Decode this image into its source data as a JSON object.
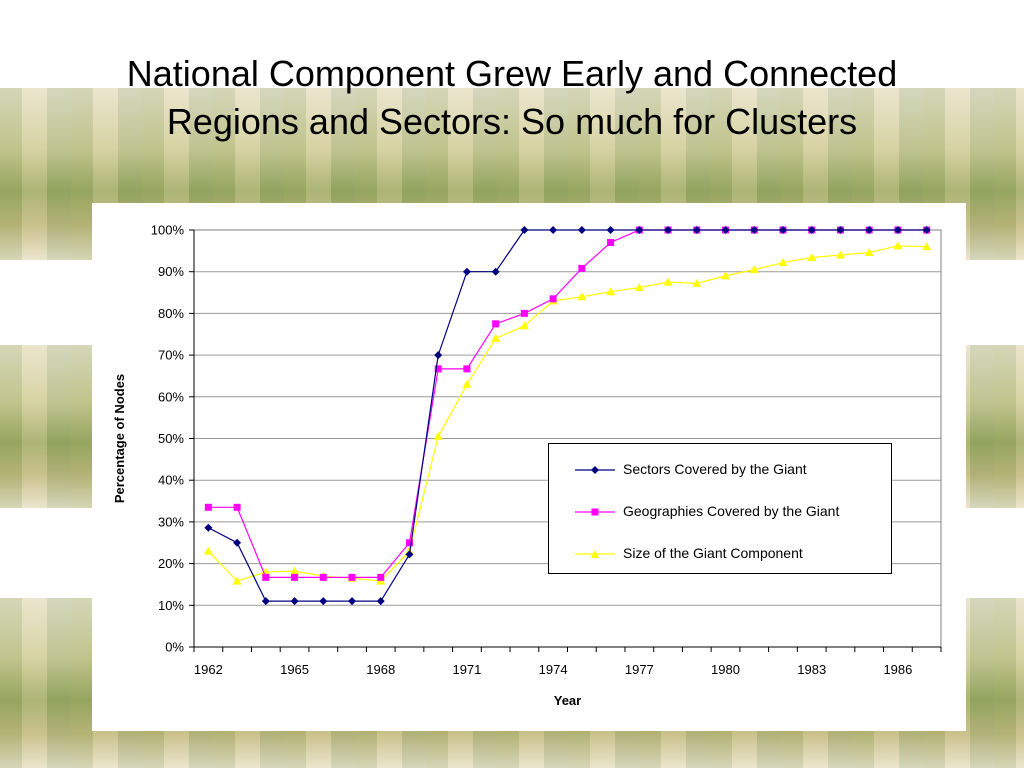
{
  "slide": {
    "title_lines": [
      "National Component Grew Early and Connected",
      "Regions and Sectors: So much for Clusters"
    ]
  },
  "chart_data": {
    "type": "line",
    "xlabel": "Year",
    "ylabel": "Percentage of Nodes",
    "x": [
      1962,
      1963,
      1964,
      1965,
      1966,
      1967,
      1968,
      1969,
      1970,
      1971,
      1972,
      1973,
      1974,
      1975,
      1976,
      1977,
      1978,
      1979,
      1980,
      1981,
      1982,
      1983,
      1984,
      1985,
      1986,
      1987
    ],
    "x_tick_labels": [
      "1962",
      "1965",
      "1968",
      "1971",
      "1974",
      "1977",
      "1980",
      "1983",
      "1986"
    ],
    "xlim": [
      1961.5,
      1987.5
    ],
    "ylim": [
      0,
      100
    ],
    "y_tick_labels": [
      "0%",
      "10%",
      "20%",
      "30%",
      "40%",
      "50%",
      "60%",
      "70%",
      "80%",
      "90%",
      "100%"
    ],
    "y_ticks": [
      0,
      10,
      20,
      30,
      40,
      50,
      60,
      70,
      80,
      90,
      100
    ],
    "grid": "horizontal",
    "legend_position": "center-right",
    "series": [
      {
        "name": "Sectors Covered by the Giant",
        "color": "#000080",
        "marker": "diamond",
        "values": [
          28.6,
          25,
          11,
          11,
          11,
          11,
          11,
          22.2,
          70,
          90,
          90,
          100,
          100,
          100,
          100,
          100,
          100,
          100,
          100,
          100,
          100,
          100,
          100,
          100,
          100,
          100
        ]
      },
      {
        "name": "Geographies Covered by the Giant",
        "color": "#ff00ff",
        "marker": "square",
        "values": [
          33.5,
          33.5,
          16.7,
          16.7,
          16.7,
          16.7,
          16.7,
          25,
          66.7,
          66.7,
          77.5,
          80,
          83.5,
          90.8,
          97,
          100,
          100,
          100,
          100,
          100,
          100,
          100,
          100,
          100,
          100,
          100
        ]
      },
      {
        "name": "Size of the Giant Component",
        "color": "#ffff00",
        "marker": "triangle",
        "values": [
          23,
          15.8,
          18,
          18.2,
          17,
          16.5,
          15.8,
          23,
          50.5,
          63,
          74,
          77,
          83,
          84,
          85.2,
          86.2,
          87.5,
          87.2,
          89,
          90.5,
          92.2,
          93.4,
          94,
          94.6,
          96.2,
          96
        ]
      }
    ]
  }
}
